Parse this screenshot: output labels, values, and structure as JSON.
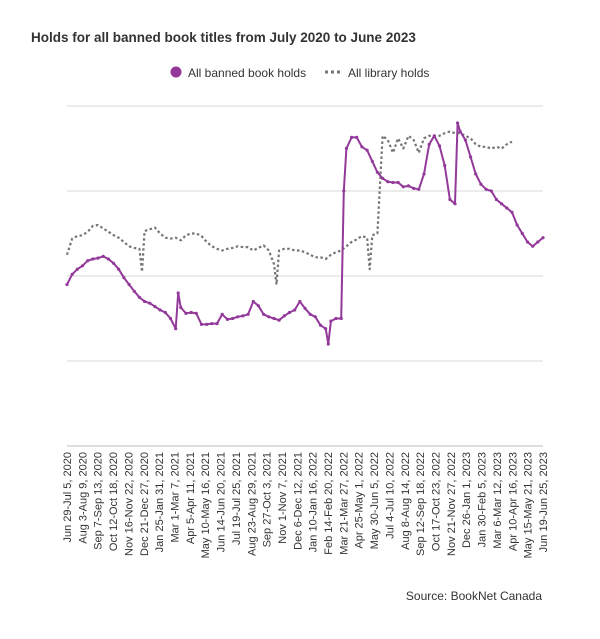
{
  "chart_data": {
    "type": "line",
    "title": "Holds for all banned book titles from July 2020 to June 2023",
    "source": "Source: BookNet Canada",
    "legend_position": "top",
    "grid": true,
    "ylim": [
      0,
      4
    ],
    "y_gridlines": [
      1,
      2,
      3,
      4
    ],
    "x_tick_labels": [
      "Jun 29-Jul 5, 2020",
      "Aug 3-Aug 9, 2020",
      "Sep 7-Sep 13, 2020",
      "Oct 12-Oct 18, 2020",
      "Nov 16-Nov 22, 2020",
      "Dec 21-Dec 27, 2020",
      "Jan 25-Jan 31, 2021",
      "Mar 1-Mar 7, 2021",
      "Apr 5-Apr 11, 2021",
      "May 10-May 16, 2021",
      "Jun 14-Jun 20, 2021",
      "Jul 19-Jul 25, 2021",
      "Aug 23-Aug 29, 2021",
      "Sep 27-Oct 3, 2021",
      "Nov 1-Nov 7, 2021",
      "Dec 6-Dec 12, 2021",
      "Jan 10-Jan 16, 2022",
      "Feb 14-Feb 20, 2022",
      "Mar 21-Mar 27, 2022",
      "Apr 25-May 1, 2022",
      "May 30-Jun 5, 2022",
      "Jul 4-Jul 10, 2022",
      "Aug 8-Aug 14, 2022",
      "Sep 12-Sep 18, 2022",
      "Oct 17-Oct 23, 2022",
      "Nov 21-Nov 27, 2022",
      "Dec 26-Jan 1, 2023",
      "Jan 30-Feb 5, 2023",
      "Mar 6-Mar 12, 2023",
      "Apr 10-Apr 16, 2023",
      "May 15-May 21, 2023",
      "Jun 19-Jun 25, 2023"
    ],
    "series": [
      {
        "name": "All banned book holds",
        "color": "#93399a",
        "style": "solid-markers",
        "points": [
          [
            0,
            1.9
          ],
          [
            1,
            2.02
          ],
          [
            2,
            2.08
          ],
          [
            3,
            2.12
          ],
          [
            4,
            2.18
          ],
          [
            5,
            2.2
          ],
          [
            6,
            2.21
          ],
          [
            7,
            2.23
          ],
          [
            8,
            2.2
          ],
          [
            9,
            2.15
          ],
          [
            10,
            2.08
          ],
          [
            11,
            1.98
          ],
          [
            12,
            1.9
          ],
          [
            13,
            1.82
          ],
          [
            14,
            1.75
          ],
          [
            15,
            1.7
          ],
          [
            16,
            1.68
          ],
          [
            17,
            1.64
          ],
          [
            18,
            1.6
          ],
          [
            19,
            1.57
          ],
          [
            20,
            1.5
          ],
          [
            21,
            1.38
          ],
          [
            21.5,
            1.8
          ],
          [
            22,
            1.63
          ],
          [
            23,
            1.56
          ],
          [
            24,
            1.57
          ],
          [
            25,
            1.56
          ],
          [
            26,
            1.43
          ],
          [
            27,
            1.43
          ],
          [
            28,
            1.44
          ],
          [
            29,
            1.44
          ],
          [
            30,
            1.55
          ],
          [
            31,
            1.49
          ],
          [
            32,
            1.5
          ],
          [
            33,
            1.52
          ],
          [
            34,
            1.53
          ],
          [
            35,
            1.55
          ],
          [
            36,
            1.7
          ],
          [
            37,
            1.65
          ],
          [
            38,
            1.55
          ],
          [
            39,
            1.52
          ],
          [
            40,
            1.5
          ],
          [
            41,
            1.48
          ],
          [
            42,
            1.53
          ],
          [
            43,
            1.57
          ],
          [
            44,
            1.6
          ],
          [
            45,
            1.7
          ],
          [
            46,
            1.62
          ],
          [
            47,
            1.55
          ],
          [
            48,
            1.52
          ],
          [
            49,
            1.42
          ],
          [
            50,
            1.38
          ],
          [
            50.5,
            1.2
          ],
          [
            51,
            1.47
          ],
          [
            52,
            1.5
          ],
          [
            53,
            1.5
          ],
          [
            53.5,
            3.0
          ],
          [
            54,
            3.5
          ],
          [
            55,
            3.63
          ],
          [
            56,
            3.63
          ],
          [
            57,
            3.52
          ],
          [
            58,
            3.48
          ],
          [
            59,
            3.35
          ],
          [
            60,
            3.22
          ],
          [
            61,
            3.15
          ],
          [
            62,
            3.11
          ],
          [
            63,
            3.1
          ],
          [
            64,
            3.1
          ],
          [
            65,
            3.05
          ],
          [
            66,
            3.06
          ],
          [
            67,
            3.03
          ],
          [
            68,
            3.02
          ],
          [
            69,
            3.2
          ],
          [
            70,
            3.55
          ],
          [
            71,
            3.65
          ],
          [
            72,
            3.53
          ],
          [
            73,
            3.3
          ],
          [
            74,
            2.9
          ],
          [
            75,
            2.85
          ],
          [
            75.5,
            3.8
          ],
          [
            76,
            3.7
          ],
          [
            77,
            3.6
          ],
          [
            78,
            3.4
          ],
          [
            79,
            3.2
          ],
          [
            80,
            3.08
          ],
          [
            81,
            3.02
          ],
          [
            82,
            3.0
          ],
          [
            83,
            2.9
          ],
          [
            84,
            2.85
          ],
          [
            85,
            2.8
          ],
          [
            86,
            2.75
          ],
          [
            87,
            2.6
          ],
          [
            88,
            2.5
          ],
          [
            89,
            2.4
          ],
          [
            90,
            2.35
          ],
          [
            91,
            2.4
          ],
          [
            92,
            2.45
          ]
        ]
      },
      {
        "name": "All library holds",
        "color": "#757575",
        "style": "dotted",
        "points": [
          [
            0,
            2.25
          ],
          [
            1,
            2.44
          ],
          [
            2,
            2.47
          ],
          [
            3,
            2.48
          ],
          [
            4,
            2.52
          ],
          [
            5,
            2.59
          ],
          [
            6,
            2.6
          ],
          [
            7,
            2.56
          ],
          [
            8,
            2.52
          ],
          [
            9,
            2.48
          ],
          [
            10,
            2.45
          ],
          [
            11,
            2.4
          ],
          [
            12,
            2.35
          ],
          [
            13,
            2.33
          ],
          [
            14,
            2.32
          ],
          [
            14.5,
            2.05
          ],
          [
            15,
            2.53
          ],
          [
            16,
            2.55
          ],
          [
            17,
            2.57
          ],
          [
            18,
            2.5
          ],
          [
            19,
            2.45
          ],
          [
            20,
            2.44
          ],
          [
            21,
            2.45
          ],
          [
            22,
            2.42
          ],
          [
            23,
            2.48
          ],
          [
            24,
            2.5
          ],
          [
            25,
            2.5
          ],
          [
            26,
            2.47
          ],
          [
            27,
            2.4
          ],
          [
            28,
            2.35
          ],
          [
            29,
            2.32
          ],
          [
            30,
            2.3
          ],
          [
            31,
            2.32
          ],
          [
            32,
            2.33
          ],
          [
            33,
            2.35
          ],
          [
            34,
            2.34
          ],
          [
            35,
            2.34
          ],
          [
            36,
            2.3
          ],
          [
            37,
            2.33
          ],
          [
            38,
            2.36
          ],
          [
            39,
            2.3
          ],
          [
            40,
            2.14
          ],
          [
            40.5,
            1.9
          ],
          [
            41,
            2.3
          ],
          [
            42,
            2.32
          ],
          [
            43,
            2.32
          ],
          [
            44,
            2.3
          ],
          [
            45,
            2.3
          ],
          [
            46,
            2.28
          ],
          [
            47,
            2.25
          ],
          [
            48,
            2.22
          ],
          [
            49,
            2.22
          ],
          [
            50,
            2.2
          ],
          [
            51,
            2.25
          ],
          [
            52,
            2.28
          ],
          [
            53,
            2.3
          ],
          [
            54,
            2.35
          ],
          [
            55,
            2.4
          ],
          [
            56,
            2.43
          ],
          [
            57,
            2.47
          ],
          [
            58,
            2.45
          ],
          [
            58.5,
            2.08
          ],
          [
            59,
            2.48
          ],
          [
            60,
            2.5
          ],
          [
            61,
            3.65
          ],
          [
            62,
            3.6
          ],
          [
            63,
            3.45
          ],
          [
            64,
            3.62
          ],
          [
            65,
            3.5
          ],
          [
            66,
            3.65
          ],
          [
            67,
            3.6
          ],
          [
            68,
            3.45
          ],
          [
            69,
            3.62
          ],
          [
            70,
            3.65
          ],
          [
            71,
            3.65
          ],
          [
            72,
            3.65
          ],
          [
            73,
            3.68
          ],
          [
            74,
            3.7
          ],
          [
            75,
            3.68
          ],
          [
            76,
            3.68
          ],
          [
            77,
            3.65
          ],
          [
            78,
            3.62
          ],
          [
            79,
            3.55
          ],
          [
            80,
            3.52
          ],
          [
            81,
            3.52
          ],
          [
            82,
            3.5
          ],
          [
            83,
            3.52
          ],
          [
            84,
            3.5
          ],
          [
            85,
            3.55
          ],
          [
            86,
            3.58
          ]
        ]
      }
    ]
  }
}
